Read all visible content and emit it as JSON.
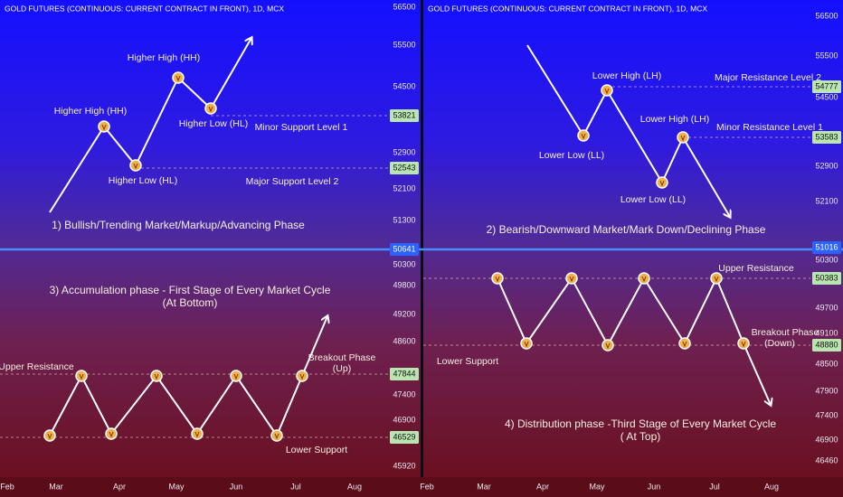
{
  "panels": [
    {
      "header": "GOLD FUTURES (CONTINUOUS: CURRENT CONTRACT IN FRONT), 1D, MCX",
      "price_ticks": [
        "56500",
        "55500",
        "54500",
        "52900",
        "52100",
        "51300",
        "50300",
        "49800",
        "49200",
        "48600",
        "47400",
        "46900",
        "45920"
      ],
      "price_badges": [
        "53821",
        "52543",
        "50641",
        "47844",
        "46529"
      ],
      "months": [
        "Feb",
        "Mar",
        "Apr",
        "May",
        "Jun",
        "Jul",
        "Aug"
      ],
      "annotations": [
        "Higher High (HH)",
        "Higher High (HH)",
        "Higher Low (HL)",
        "Higher Low (HL)",
        "Minor Support Level 1",
        "Major Support Level 2",
        "1) Bullish/Trending Market/Markup/Advancing Phase",
        "3) Accumulation phase - First Stage of Every Market Cycle",
        "(At Bottom)",
        "Upper Resistance",
        "Breakout Phase",
        "(Up)",
        "Lower Support"
      ]
    },
    {
      "header": "GOLD FUTURES (CONTINUOUS: CURRENT CONTRACT IN FRONT), 1D, MCX",
      "price_ticks": [
        "56500",
        "55500",
        "54500",
        "52900",
        "52100",
        "50300",
        "49700",
        "49100",
        "48500",
        "47900",
        "47400",
        "46900",
        "46460"
      ],
      "price_badges": [
        "54777",
        "53583",
        "51016",
        "50383",
        "48880"
      ],
      "months": [
        "Feb",
        "Mar",
        "Apr",
        "May",
        "Jun",
        "Jul",
        "Aug"
      ],
      "annotations": [
        "Lower High (LH)",
        "Lower Low (LL)",
        "Lower High (LH)",
        "Lower Low (LL)",
        "Major Resistance Level 2",
        "Minor Resistance Level 1",
        "2) Bearish/Downward Market/Mark Down/Declining Phase",
        "4) Distribution phase -Third Stage of Every Market Cycle",
        "( At Top)",
        "Upper Resistance",
        "Lower Support",
        "Breakout Phase",
        "(Down)"
      ]
    }
  ]
}
